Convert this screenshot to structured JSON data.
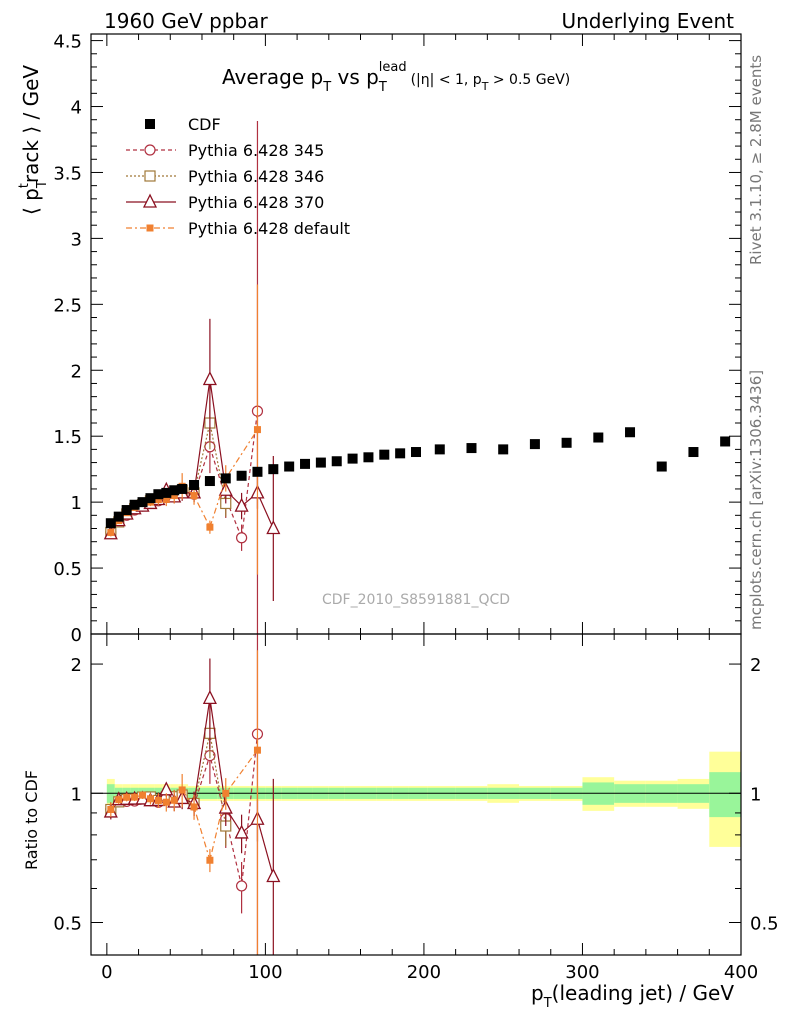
{
  "header": {
    "left": "1960 GeV ppbar",
    "right": "Underlying Event"
  },
  "sidebar": {
    "rivet": "Rivet 3.1.10, ≥ 2.8M events",
    "mcplots": "mcplots.cern.ch [arXiv:1306.3436]"
  },
  "analysis_id": "CDF_2010_S8591881_QCD",
  "chart_data": {
    "type": "scatter",
    "title": {
      "t1": "Average p",
      "t1_sub": "T",
      "t2": " vs p",
      "t2_sub": "T",
      "t2_sup": "lead",
      "t3": "(|η| < 1, p",
      "t3_sub": "T",
      "t4": " > 0.5 GeV)"
    },
    "ylabel": {
      "pre": "⟨ p",
      "sub": "T",
      "sup": "t",
      "post": "rack ⟩ / GeV"
    },
    "xlabel": {
      "pre": "p",
      "sub": "T",
      "post": "(leading jet) / GeV"
    },
    "ratio_ylabel": "Ratio to CDF",
    "xlim": [
      -10,
      400
    ],
    "ylim": [
      0,
      4.55
    ],
    "ratio_ylim": [
      0.42,
      2.35
    ],
    "x_ticks": [
      0,
      100,
      200,
      300,
      400
    ],
    "x_tick_labels": [
      "0",
      "100",
      "200",
      "300",
      "400"
    ],
    "y_ticks": [
      0,
      0.5,
      1,
      1.5,
      2,
      2.5,
      3,
      3.5,
      4,
      4.5
    ],
    "y_tick_labels": [
      "0",
      "0.5",
      "1",
      "1.5",
      "2",
      "2.5",
      "3",
      "3.5",
      "4",
      "4.5"
    ],
    "ratio_y_ticks": [
      0.5,
      1,
      2
    ],
    "ratio_y_tick_labels": [
      "0.5",
      "1",
      "2"
    ],
    "legend_position": "top-left",
    "data": {
      "name": "CDF",
      "color": "#000000",
      "x": [
        2.5,
        7.5,
        12.5,
        17.5,
        22.5,
        27.5,
        32.5,
        37.5,
        42.5,
        47.5,
        55,
        65,
        75,
        85,
        95,
        105,
        115,
        125,
        135,
        145,
        155,
        165,
        175,
        185,
        195,
        210,
        230,
        250,
        270,
        290,
        310,
        330,
        350,
        370,
        390
      ],
      "y": [
        0.84,
        0.89,
        0.94,
        0.98,
        1.0,
        1.03,
        1.06,
        1.07,
        1.09,
        1.1,
        1.13,
        1.16,
        1.18,
        1.2,
        1.23,
        1.25,
        1.27,
        1.29,
        1.3,
        1.31,
        1.33,
        1.34,
        1.36,
        1.37,
        1.38,
        1.4,
        1.41,
        1.4,
        1.44,
        1.45,
        1.49,
        1.53,
        1.27,
        1.38,
        1.46
      ],
      "band_inner": [
        0.05,
        0.03,
        0.03,
        0.03,
        0.03,
        0.03,
        0.03,
        0.03,
        0.03,
        0.03,
        0.03,
        0.03,
        0.03,
        0.03,
        0.03,
        0.03,
        0.03,
        0.03,
        0.03,
        0.03,
        0.03,
        0.03,
        0.03,
        0.03,
        0.03,
        0.03,
        0.03,
        0.03,
        0.03,
        0.03,
        0.06,
        0.05,
        0.05,
        0.05,
        0.12
      ],
      "band_outer": [
        0.08,
        0.05,
        0.05,
        0.05,
        0.05,
        0.05,
        0.05,
        0.05,
        0.05,
        0.05,
        0.04,
        0.04,
        0.04,
        0.04,
        0.04,
        0.04,
        0.04,
        0.04,
        0.04,
        0.04,
        0.04,
        0.04,
        0.04,
        0.04,
        0.04,
        0.04,
        0.04,
        0.05,
        0.04,
        0.04,
        0.09,
        0.07,
        0.07,
        0.08,
        0.25
      ]
    },
    "series": [
      {
        "name": "Pythia 6.428 345",
        "color": "#b03040",
        "marker": "circle-open",
        "dash": "4,3",
        "x": [
          2.5,
          7.5,
          12.5,
          17.5,
          22.5,
          27.5,
          32.5,
          37.5,
          42.5,
          47.5,
          55,
          65,
          75,
          85,
          95
        ],
        "y": [
          0.77,
          0.85,
          0.9,
          0.94,
          0.97,
          0.99,
          1.01,
          1.04,
          1.06,
          1.08,
          1.06,
          1.42,
          1.03,
          0.73,
          1.69
        ],
        "err": [
          0.03,
          0.02,
          0.02,
          0.02,
          0.02,
          0.02,
          0.03,
          0.03,
          0.04,
          0.06,
          0.06,
          0.2,
          0.15,
          0.1,
          2.2
        ]
      },
      {
        "name": "Pythia 6.428 346",
        "color": "#a07838",
        "marker": "square-open",
        "dash": "2,2",
        "x": [
          2.5,
          7.5,
          12.5,
          17.5,
          22.5,
          27.5,
          32.5,
          37.5,
          42.5,
          47.5,
          55,
          65,
          75
        ],
        "y": [
          0.77,
          0.85,
          0.91,
          0.95,
          0.98,
          1.01,
          1.02,
          1.05,
          1.07,
          1.09,
          1.07,
          1.6,
          0.99
        ],
        "err": [
          0.03,
          0.02,
          0.02,
          0.02,
          0.02,
          0.03,
          0.03,
          0.03,
          0.04,
          0.05,
          0.05,
          0.2,
          0.1
        ]
      },
      {
        "name": "Pythia 6.428 370",
        "color": "#8b1020",
        "marker": "triangle-open",
        "dash": "",
        "x": [
          2.5,
          7.5,
          12.5,
          17.5,
          22.5,
          27.5,
          32.5,
          37.5,
          42.5,
          47.5,
          55,
          65,
          75,
          85,
          95,
          105
        ],
        "y": [
          0.76,
          0.86,
          0.91,
          0.95,
          0.97,
          0.99,
          1.02,
          1.09,
          1.04,
          1.07,
          1.07,
          1.93,
          1.09,
          0.97,
          1.07,
          0.8
        ],
        "err": [
          0.03,
          0.02,
          0.02,
          0.02,
          0.02,
          0.03,
          0.03,
          0.04,
          0.05,
          0.06,
          0.07,
          0.46,
          0.1,
          0.1,
          0.12,
          0.55
        ]
      },
      {
        "name": "Pythia 6.428 default",
        "color": "#f08030",
        "marker": "square-filled",
        "dash": "6,3,2,3",
        "x": [
          2.5,
          7.5,
          12.5,
          17.5,
          22.5,
          27.5,
          32.5,
          37.5,
          42.5,
          47.5,
          55,
          65,
          75,
          95
        ],
        "y": [
          0.77,
          0.86,
          0.92,
          0.96,
          0.99,
          1.0,
          1.02,
          1.02,
          1.05,
          1.12,
          1.05,
          0.81,
          1.18,
          1.55
        ],
        "err": [
          0.03,
          0.02,
          0.02,
          0.02,
          0.02,
          0.03,
          0.04,
          0.05,
          0.06,
          0.1,
          0.07,
          0.05,
          0.1,
          1.1
        ]
      }
    ]
  }
}
